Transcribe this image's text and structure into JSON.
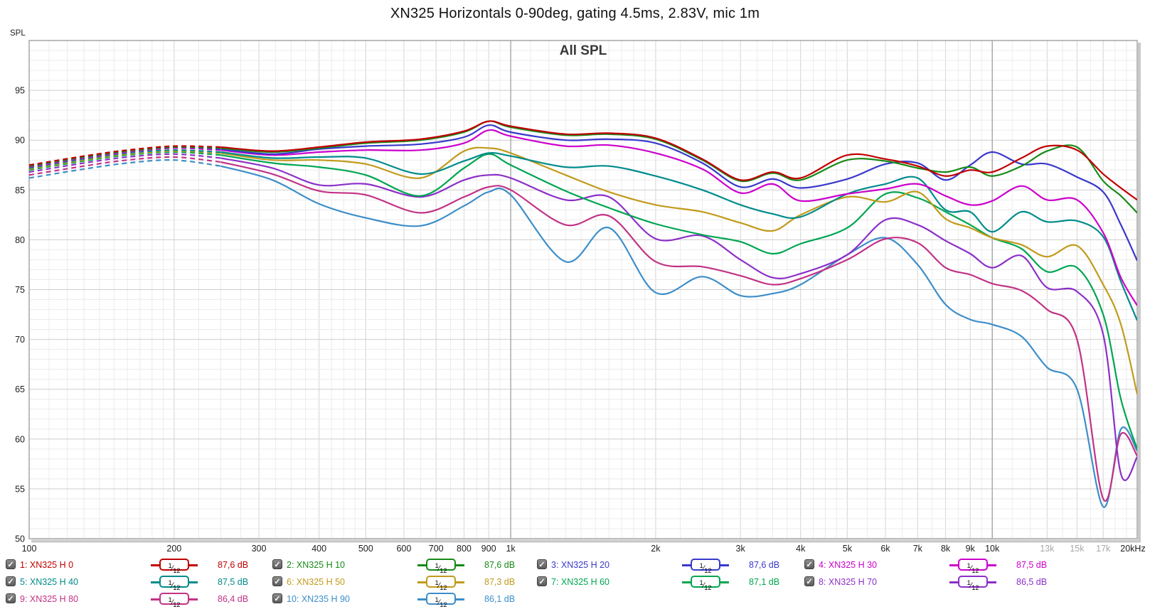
{
  "title": "XN325 Horizontals 0-90deg, gating 4.5ms, 2.83V, mic 1m",
  "chart_data": {
    "type": "line",
    "chart_title": "All SPL",
    "ylabel": "SPL",
    "x_unit": "Hz",
    "x_scale": "log",
    "xlim": [
      100,
      20000
    ],
    "ylim": [
      50,
      100
    ],
    "grid": true,
    "legend_position": "bottom",
    "y_major_ticks": [
      50,
      55,
      60,
      65,
      70,
      75,
      80,
      85,
      90,
      95
    ],
    "x_ticks": [
      {
        "f": 100,
        "label": "100",
        "gray": false
      },
      {
        "f": 200,
        "label": "200",
        "gray": false
      },
      {
        "f": 300,
        "label": "300",
        "gray": false
      },
      {
        "f": 400,
        "label": "400",
        "gray": false
      },
      {
        "f": 500,
        "label": "500",
        "gray": false
      },
      {
        "f": 600,
        "label": "600",
        "gray": false
      },
      {
        "f": 700,
        "label": "700",
        "gray": false
      },
      {
        "f": 800,
        "label": "800",
        "gray": false
      },
      {
        "f": 900,
        "label": "900",
        "gray": false
      },
      {
        "f": 1000,
        "label": "1k",
        "gray": false
      },
      {
        "f": 2000,
        "label": "2k",
        "gray": false
      },
      {
        "f": 3000,
        "label": "3k",
        "gray": false
      },
      {
        "f": 4000,
        "label": "4k",
        "gray": false
      },
      {
        "f": 5000,
        "label": "5k",
        "gray": false
      },
      {
        "f": 6000,
        "label": "6k",
        "gray": false
      },
      {
        "f": 7000,
        "label": "7k",
        "gray": false
      },
      {
        "f": 8000,
        "label": "8k",
        "gray": false
      },
      {
        "f": 9000,
        "label": "9k",
        "gray": false
      },
      {
        "f": 10000,
        "label": "10k",
        "gray": false
      },
      {
        "f": 13000,
        "label": "13k",
        "gray": true
      },
      {
        "f": 15000,
        "label": "15k",
        "gray": true
      },
      {
        "f": 17000,
        "label": "17k",
        "gray": true
      },
      {
        "f": 20000,
        "label": "20kHz",
        "gray": false
      }
    ],
    "smoothing_label": "1/12",
    "dashed_below_hz": 235,
    "frequencies": [
      100,
      130,
      160,
      200,
      250,
      320,
      400,
      500,
      650,
      800,
      900,
      1000,
      1300,
      1600,
      2000,
      2500,
      3000,
      3500,
      4000,
      5000,
      6000,
      7000,
      8000,
      9000,
      10000,
      11500,
      13000,
      15000,
      17000,
      18500,
      20000
    ],
    "series": [
      {
        "name": "1: XN325 H 0",
        "color": "#c00000",
        "avg": "87,6 dB",
        "legend_col": 0,
        "legend_row": 0,
        "values": [
          87.5,
          88.4,
          89.0,
          89.4,
          89.3,
          88.9,
          89.3,
          89.8,
          90.1,
          90.9,
          91.9,
          91.4,
          90.6,
          90.7,
          90.2,
          88.1,
          86.0,
          86.8,
          86.2,
          88.5,
          88.1,
          87.4,
          86.4,
          87.0,
          86.8,
          88.2,
          89.4,
          89.0,
          86.6,
          85.2,
          84.0
        ]
      },
      {
        "name": "2: XN325 H 10",
        "color": "#178a17",
        "avg": "87,6 dB",
        "legend_col": 1,
        "legend_row": 0,
        "values": [
          87.4,
          88.3,
          88.9,
          89.3,
          89.2,
          88.8,
          89.2,
          89.7,
          90.0,
          90.8,
          91.9,
          91.3,
          90.5,
          90.6,
          90.1,
          88.0,
          85.9,
          86.7,
          86.0,
          88.0,
          87.9,
          87.2,
          86.8,
          87.3,
          86.4,
          87.4,
          88.9,
          89.3,
          85.9,
          84.4,
          82.7
        ]
      },
      {
        "name": "3: XN325 H 20",
        "color": "#3838cc",
        "avg": "87,6 dB",
        "legend_col": 2,
        "legend_row": 0,
        "values": [
          87.4,
          88.3,
          88.9,
          89.3,
          89.1,
          88.6,
          89.1,
          89.4,
          89.6,
          90.3,
          91.5,
          90.8,
          90.0,
          90.1,
          89.7,
          87.7,
          85.3,
          86.1,
          85.2,
          86.1,
          87.6,
          87.7,
          86.0,
          87.5,
          88.8,
          87.6,
          87.6,
          86.3,
          84.8,
          81.5,
          77.9
        ]
      },
      {
        "name": "4: XN325 H 30",
        "color": "#cc00cc",
        "avg": "87,5 dB",
        "legend_col": 3,
        "legend_row": 0,
        "values": [
          87.3,
          88.2,
          88.8,
          89.2,
          89.0,
          88.5,
          88.8,
          89.0,
          89.0,
          89.7,
          91.0,
          90.4,
          89.4,
          89.5,
          88.7,
          87.1,
          84.7,
          85.6,
          83.9,
          84.6,
          85.1,
          85.6,
          84.4,
          83.5,
          83.9,
          85.4,
          84.0,
          84.0,
          80.7,
          76.2,
          73.4
        ]
      },
      {
        "name": "5: XN325 H 40",
        "color": "#008b8b",
        "avg": "87,5 dB",
        "legend_col": 0,
        "legend_row": 1,
        "values": [
          87.2,
          88.1,
          88.7,
          89.0,
          88.8,
          88.2,
          88.3,
          88.2,
          86.6,
          87.9,
          88.7,
          88.4,
          87.3,
          87.4,
          86.4,
          85.0,
          83.5,
          82.6,
          82.3,
          84.6,
          85.6,
          86.2,
          83.0,
          82.8,
          80.8,
          82.8,
          81.8,
          81.9,
          80.3,
          75.8,
          71.9
        ]
      },
      {
        "name": "6: XN325 H 50",
        "color": "#c19a1b",
        "avg": "87,3 dB",
        "legend_col": 1,
        "legend_row": 1,
        "values": [
          87.1,
          88.0,
          88.6,
          88.9,
          88.7,
          88.0,
          88.0,
          87.6,
          86.2,
          88.9,
          89.2,
          88.7,
          86.5,
          84.8,
          83.5,
          82.8,
          81.7,
          80.9,
          82.5,
          84.3,
          83.8,
          84.8,
          82.1,
          81.2,
          80.2,
          79.5,
          78.3,
          79.4,
          75.5,
          71.5,
          64.5
        ]
      },
      {
        "name": "7: XN325 H 60",
        "color": "#00a551",
        "avg": "87,1 dB",
        "legend_col": 2,
        "legend_row": 1,
        "values": [
          87.0,
          87.9,
          88.5,
          88.8,
          88.5,
          87.7,
          87.3,
          86.5,
          84.4,
          87.2,
          88.6,
          87.5,
          84.9,
          83.2,
          81.6,
          80.5,
          79.8,
          78.6,
          79.6,
          81.2,
          84.6,
          84.2,
          82.8,
          81.5,
          80.2,
          79.1,
          76.8,
          77.2,
          72.5,
          64.0,
          59.0
        ]
      },
      {
        "name": "8: XN325 H 70",
        "color": "#8c2fc8",
        "avg": "86,5 dB",
        "legend_col": 3,
        "legend_row": 1,
        "values": [
          86.8,
          87.7,
          88.3,
          88.6,
          88.2,
          87.2,
          85.5,
          85.6,
          84.3,
          86.0,
          86.5,
          86.2,
          84.0,
          84.3,
          80.1,
          80.4,
          78.0,
          76.2,
          76.6,
          78.5,
          82.0,
          81.5,
          79.9,
          78.6,
          77.2,
          78.4,
          75.2,
          74.8,
          70.5,
          56.5,
          58.2
        ]
      },
      {
        "name": "9: XN325 H 80",
        "color": "#c23286",
        "avg": "86,4 dB",
        "legend_col": 0,
        "legend_row": 2,
        "values": [
          86.5,
          87.4,
          88.0,
          88.3,
          87.8,
          86.6,
          84.9,
          84.5,
          82.7,
          84.3,
          85.3,
          85.0,
          81.5,
          82.4,
          77.8,
          77.3,
          76.4,
          75.5,
          76.1,
          78.0,
          80.1,
          79.7,
          77.2,
          76.5,
          75.6,
          74.9,
          73.0,
          70.0,
          54.0,
          60.5,
          58.3
        ]
      },
      {
        "name": "10: XN235 H 90",
        "color": "#3d8ec9",
        "avg": "86,1 dB",
        "legend_col": 1,
        "legend_row": 2,
        "values": [
          86.2,
          87.1,
          87.7,
          88.0,
          87.4,
          86.0,
          83.6,
          82.2,
          81.4,
          83.4,
          84.8,
          84.5,
          77.8,
          81.2,
          74.7,
          76.3,
          74.4,
          74.6,
          75.5,
          78.5,
          80.2,
          77.5,
          73.5,
          72.0,
          71.5,
          70.3,
          67.2,
          65.0,
          53.2,
          61.0,
          58.8
        ]
      }
    ]
  },
  "legend": {
    "checkbox_glyph": "✓"
  },
  "colors": {
    "grid_minor": "#ececec",
    "grid_major": "#cdcdcd",
    "grid_tick": "#d8d8d8",
    "grid_decade": "#9b9b9b",
    "plot_border": "#a6a6a6",
    "chart_title": "#3a3a3a",
    "tick_label": "#1c1c1c",
    "tick_label_gray": "#a8a8a8"
  }
}
